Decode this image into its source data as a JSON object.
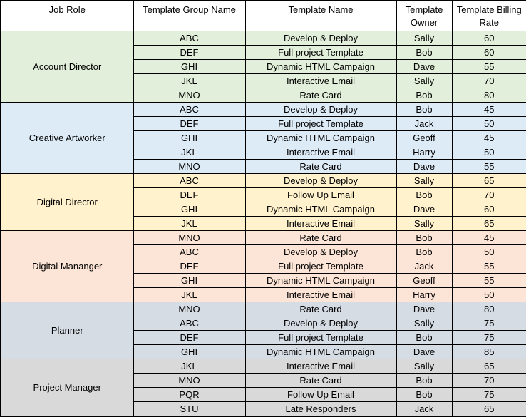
{
  "table": {
    "headers": [
      "Job Role",
      "Template Group Name",
      "Template Name",
      "Template Owner",
      "Template Billing Rate"
    ],
    "groups": [
      {
        "job_role": "Account Director",
        "color": "#E2EFDA",
        "rows": [
          {
            "group_name": "ABC",
            "template_name": "Develop & Deploy",
            "owner": "Sally",
            "rate": "60"
          },
          {
            "group_name": "DEF",
            "template_name": "Full project Template",
            "owner": "Bob",
            "rate": "60"
          },
          {
            "group_name": "GHI",
            "template_name": "Dynamic HTML Campaign",
            "owner": "Dave",
            "rate": "55"
          },
          {
            "group_name": "JKL",
            "template_name": "Interactive Email",
            "owner": "Sally",
            "rate": "70"
          },
          {
            "group_name": "MNO",
            "template_name": "Rate Card",
            "owner": "Bob",
            "rate": "80"
          }
        ]
      },
      {
        "job_role": "Creative Artworker",
        "color": "#DDEBF7",
        "rows": [
          {
            "group_name": "ABC",
            "template_name": "Develop & Deploy",
            "owner": "Bob",
            "rate": "45"
          },
          {
            "group_name": "DEF",
            "template_name": "Full project Template",
            "owner": "Jack",
            "rate": "50"
          },
          {
            "group_name": "GHI",
            "template_name": "Dynamic HTML Campaign",
            "owner": "Geoff",
            "rate": "45"
          },
          {
            "group_name": "JKL",
            "template_name": "Interactive Email",
            "owner": "Harry",
            "rate": "50"
          },
          {
            "group_name": "MNO",
            "template_name": "Rate Card",
            "owner": "Dave",
            "rate": "55"
          }
        ]
      },
      {
        "job_role": "Digital Director",
        "color": "#FFF2CC",
        "rows": [
          {
            "group_name": "ABC",
            "template_name": "Develop & Deploy",
            "owner": "Sally",
            "rate": "65"
          },
          {
            "group_name": "DEF",
            "template_name": "Follow Up Email",
            "owner": "Bob",
            "rate": "70"
          },
          {
            "group_name": "GHI",
            "template_name": "Dynamic HTML Campaign",
            "owner": "Dave",
            "rate": "60"
          },
          {
            "group_name": "JKL",
            "template_name": "Interactive Email",
            "owner": "Sally",
            "rate": "65"
          }
        ]
      },
      {
        "job_role": "Digital Mananger",
        "color": "#FCE4D6",
        "rows": [
          {
            "group_name": "MNO",
            "template_name": "Rate Card",
            "owner": "Bob",
            "rate": "45"
          },
          {
            "group_name": "ABC",
            "template_name": "Develop & Deploy",
            "owner": "Bob",
            "rate": "50"
          },
          {
            "group_name": "DEF",
            "template_name": "Full project Template",
            "owner": "Jack",
            "rate": "55"
          },
          {
            "group_name": "GHI",
            "template_name": "Dynamic HTML Campaign",
            "owner": "Geoff",
            "rate": "55"
          },
          {
            "group_name": "JKL",
            "template_name": "Interactive Email",
            "owner": "Harry",
            "rate": "50"
          }
        ]
      },
      {
        "job_role": "Planner",
        "color": "#D6DCE4",
        "rows": [
          {
            "group_name": "MNO",
            "template_name": "Rate Card",
            "owner": "Dave",
            "rate": "80"
          },
          {
            "group_name": "ABC",
            "template_name": "Develop & Deploy",
            "owner": "Sally",
            "rate": "75"
          },
          {
            "group_name": "DEF",
            "template_name": "Full project Template",
            "owner": "Bob",
            "rate": "75"
          },
          {
            "group_name": "GHI",
            "template_name": "Dynamic HTML Campaign",
            "owner": "Dave",
            "rate": "85"
          }
        ]
      },
      {
        "job_role": "Project Manager",
        "color": "#D9D9D9",
        "rows": [
          {
            "group_name": "JKL",
            "template_name": "Interactive Email",
            "owner": "Sally",
            "rate": "65"
          },
          {
            "group_name": "MNO",
            "template_name": "Rate Card",
            "owner": "Bob",
            "rate": "70"
          },
          {
            "group_name": "PQR",
            "template_name": "Follow Up Email",
            "owner": "Bob",
            "rate": "75"
          },
          {
            "group_name": "STU",
            "template_name": "Late Responders",
            "owner": "Jack",
            "rate": "65"
          }
        ]
      }
    ]
  }
}
